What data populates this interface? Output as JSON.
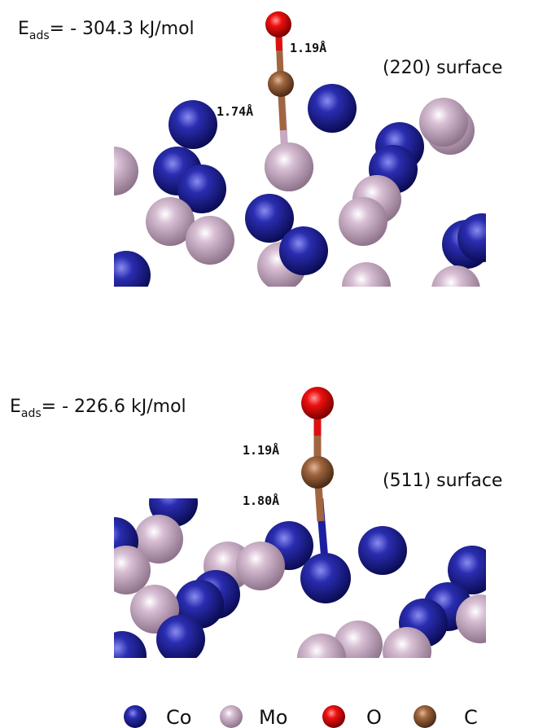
{
  "panels": [
    {
      "energy": {
        "symbol": "E",
        "subscript": "ads",
        "text": "= - 304.3 kJ/mol"
      },
      "bond_labels": [
        "1.19Å",
        "1.74Å"
      ],
      "surface": "(220) surface"
    },
    {
      "energy": {
        "symbol": "E",
        "subscript": "ads",
        "text": "= - 226.6 kJ/mol"
      },
      "bond_labels": [
        "1.19Å",
        "1.80Å"
      ],
      "surface": "(511) surface"
    }
  ],
  "legend": [
    "Co",
    "Mo",
    "O",
    "C"
  ]
}
